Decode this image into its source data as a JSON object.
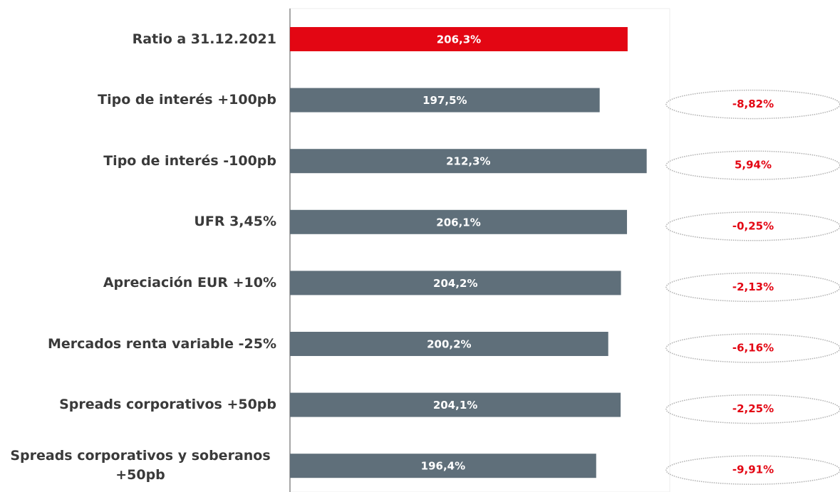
{
  "chart_data": {
    "type": "barh",
    "categories": [
      "Ratio a 31.12.2021",
      "Tipo de interés +100pb",
      "Tipo de interés -100pb",
      "UFR 3,45%",
      "Apreciación EUR +10%",
      "Mercados renta variable -25%",
      "Spreads corporativos +50pb",
      "Spreads corporativos y soberanos +50pb"
    ],
    "values": [
      206.3,
      197.5,
      212.3,
      206.1,
      204.2,
      200.2,
      204.1,
      196.4
    ],
    "value_labels": [
      "206,3%",
      "197,5%",
      "212,3%",
      "206,1%",
      "204,2%",
      "200,2%",
      "204,1%",
      "196,4%"
    ],
    "colors": [
      "#e30613",
      "#5f6f7a",
      "#5f6f7a",
      "#5f6f7a",
      "#5f6f7a",
      "#5f6f7a",
      "#5f6f7a",
      "#5f6f7a"
    ],
    "annotations": [
      null,
      "-8,82%",
      "5,94%",
      "-0,25%",
      "-2,13%",
      "-6,16%",
      "-2,25%",
      "-9,91%"
    ],
    "xlim": [
      100,
      220
    ]
  }
}
